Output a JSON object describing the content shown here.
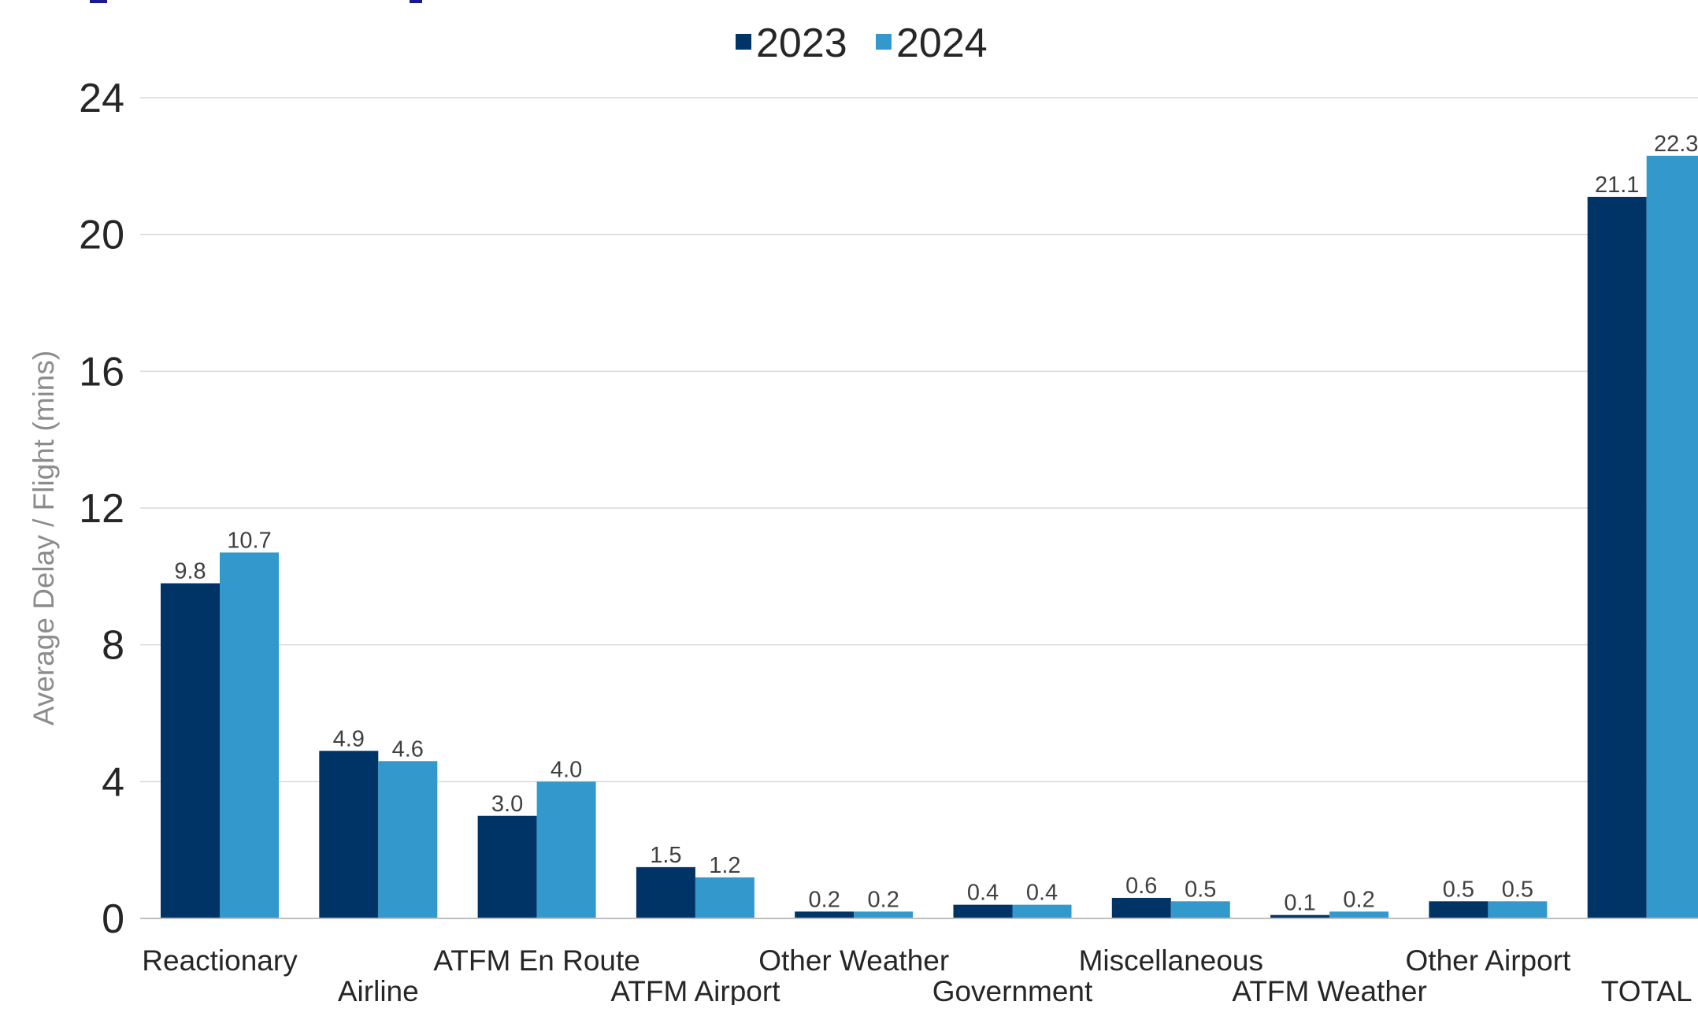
{
  "colors": {
    "series_2023": "#003366",
    "series_2024": "#3399cc",
    "title_fragment": "#1a1a8c",
    "gridline": "#d9d9d9",
    "tick_text": "#262626",
    "axis_label_text": "#8c8c8c",
    "data_label_text": "#404040"
  },
  "chart_data": {
    "type": "bar",
    "title": "",
    "xlabel": "",
    "ylabel": "Average Delay / Flight (mins)",
    "ylim": [
      0,
      24
    ],
    "yticks": [
      "0",
      "4",
      "8",
      "12",
      "16",
      "20",
      "24"
    ],
    "grid": true,
    "legend_position": "top-center",
    "categories": [
      "Reactionary",
      "Airline",
      "ATFM En Route",
      "ATFM Airport",
      "Other Weather",
      "Government",
      "Miscellaneous",
      "ATFM Weather",
      "Other Airport",
      "TOTAL"
    ],
    "series": [
      {
        "name": "2023",
        "values": [
          9.8,
          4.9,
          3.0,
          1.5,
          0.2,
          0.4,
          0.6,
          0.1,
          0.5,
          21.1
        ],
        "labels": [
          "9.8",
          "4.9",
          "3.0",
          "1.5",
          "0.2",
          "0.4",
          "0.6",
          "0.1",
          "0.5",
          "21.1"
        ]
      },
      {
        "name": "2024",
        "values": [
          10.7,
          4.6,
          4.0,
          1.2,
          0.2,
          0.4,
          0.5,
          0.2,
          0.5,
          22.3
        ],
        "labels": [
          "10.7",
          "4.6",
          "4.0",
          "1.2",
          "0.2",
          "0.4",
          "0.5",
          "0.2",
          "0.5",
          "22.3"
        ]
      }
    ]
  }
}
